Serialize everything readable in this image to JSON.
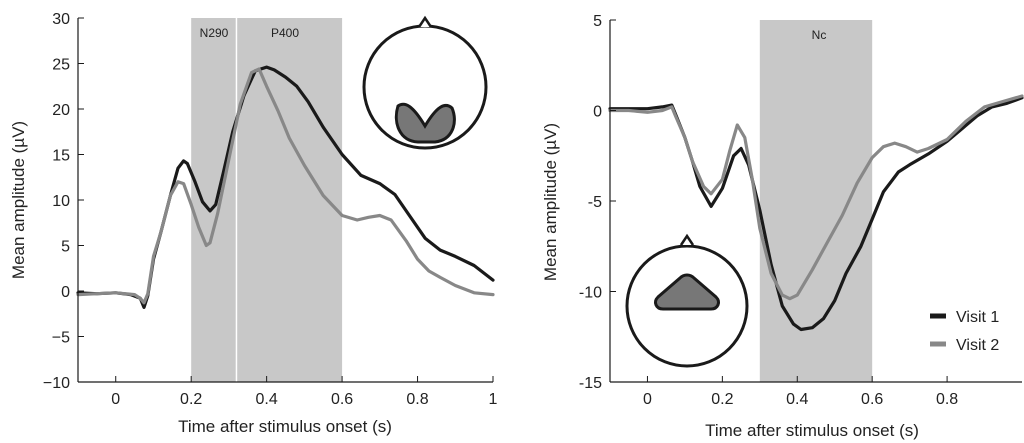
{
  "chart_data": [
    {
      "type": "line",
      "xlabel": "Time after stimulus onset (s)",
      "ylabel": "Mean amplitude (µV)",
      "xlim": [
        -0.1,
        1.0
      ],
      "ylim": [
        -10,
        30
      ],
      "xticks": [
        "0",
        "0.2",
        "0.4",
        "0.6",
        "0.8",
        "1"
      ],
      "yticks": [
        "30",
        "25",
        "20",
        "15",
        "10",
        "5",
        "0",
        "−5",
        "−10"
      ],
      "shaded_regions": [
        {
          "label": "N290",
          "x_start": 0.2,
          "x_end": 0.32
        },
        {
          "label": "P400",
          "x_start": 0.32,
          "x_end": 0.6
        }
      ],
      "series": [
        {
          "name": "Visit 1",
          "color": "#1a1a1a",
          "points": [
            [
              -0.1,
              -0.2
            ],
            [
              -0.05,
              -0.3
            ],
            [
              0.0,
              -0.2
            ],
            [
              0.04,
              -0.4
            ],
            [
              0.065,
              -0.8
            ],
            [
              0.075,
              -1.8
            ],
            [
              0.085,
              -0.5
            ],
            [
              0.1,
              3.5
            ],
            [
              0.12,
              6.5
            ],
            [
              0.145,
              10.5
            ],
            [
              0.165,
              13.5
            ],
            [
              0.18,
              14.3
            ],
            [
              0.19,
              14.0
            ],
            [
              0.21,
              12.0
            ],
            [
              0.23,
              9.8
            ],
            [
              0.25,
              8.8
            ],
            [
              0.265,
              9.5
            ],
            [
              0.285,
              13.0
            ],
            [
              0.31,
              17.5
            ],
            [
              0.34,
              21.5
            ],
            [
              0.37,
              24.2
            ],
            [
              0.4,
              24.6
            ],
            [
              0.42,
              24.3
            ],
            [
              0.45,
              23.5
            ],
            [
              0.48,
              22.5
            ],
            [
              0.51,
              20.8
            ],
            [
              0.55,
              18.0
            ],
            [
              0.6,
              15.0
            ],
            [
              0.65,
              12.7
            ],
            [
              0.7,
              11.8
            ],
            [
              0.74,
              10.6
            ],
            [
              0.78,
              8.2
            ],
            [
              0.82,
              5.8
            ],
            [
              0.86,
              4.5
            ],
            [
              0.9,
              3.8
            ],
            [
              0.95,
              2.8
            ],
            [
              1.0,
              1.2
            ]
          ]
        },
        {
          "name": "Visit 2",
          "color": "#888888",
          "points": [
            [
              -0.1,
              -0.4
            ],
            [
              -0.05,
              -0.3
            ],
            [
              0.0,
              -0.2
            ],
            [
              0.05,
              -0.4
            ],
            [
              0.065,
              -0.8
            ],
            [
              0.075,
              -1.3
            ],
            [
              0.085,
              -0.3
            ],
            [
              0.1,
              3.8
            ],
            [
              0.12,
              6.5
            ],
            [
              0.145,
              10.5
            ],
            [
              0.165,
              12.0
            ],
            [
              0.18,
              11.8
            ],
            [
              0.2,
              9.5
            ],
            [
              0.22,
              7.0
            ],
            [
              0.24,
              5.0
            ],
            [
              0.25,
              5.3
            ],
            [
              0.27,
              8.5
            ],
            [
              0.3,
              14.5
            ],
            [
              0.33,
              20.5
            ],
            [
              0.36,
              24.0
            ],
            [
              0.38,
              24.4
            ],
            [
              0.4,
              22.5
            ],
            [
              0.43,
              19.8
            ],
            [
              0.46,
              16.8
            ],
            [
              0.5,
              13.8
            ],
            [
              0.55,
              10.5
            ],
            [
              0.6,
              8.3
            ],
            [
              0.64,
              7.8
            ],
            [
              0.67,
              8.1
            ],
            [
              0.7,
              8.3
            ],
            [
              0.73,
              7.8
            ],
            [
              0.77,
              5.5
            ],
            [
              0.8,
              3.5
            ],
            [
              0.83,
              2.2
            ],
            [
              0.86,
              1.5
            ],
            [
              0.9,
              0.6
            ],
            [
              0.95,
              -0.2
            ],
            [
              1.0,
              -0.4
            ]
          ]
        }
      ],
      "grid": false
    },
    {
      "type": "line",
      "xlabel": "Time after stimulus onset (s)",
      "ylabel": "Mean amplitude (µV)",
      "xlim": [
        -0.1,
        1.0
      ],
      "ylim": [
        -15,
        5
      ],
      "xticks": [
        "0",
        "0.2",
        "0.4",
        "0.6",
        "0.8"
      ],
      "yticks": [
        "5",
        "0",
        "-5",
        "-10",
        "-15"
      ],
      "shaded_regions": [
        {
          "label": "Nc",
          "x_start": 0.3,
          "x_end": 0.6
        }
      ],
      "legend_position": "bottom-right",
      "series": [
        {
          "name": "Visit 1",
          "color": "#1a1a1a",
          "points": [
            [
              -0.1,
              0.1
            ],
            [
              -0.05,
              0.1
            ],
            [
              0.0,
              0.1
            ],
            [
              0.04,
              0.2
            ],
            [
              0.065,
              0.3
            ],
            [
              0.075,
              -0.2
            ],
            [
              0.1,
              -1.5
            ],
            [
              0.12,
              -2.8
            ],
            [
              0.14,
              -4.2
            ],
            [
              0.17,
              -5.3
            ],
            [
              0.2,
              -4.3
            ],
            [
              0.23,
              -2.5
            ],
            [
              0.25,
              -2.1
            ],
            [
              0.27,
              -3.0
            ],
            [
              0.3,
              -5.5
            ],
            [
              0.33,
              -8.5
            ],
            [
              0.36,
              -10.8
            ],
            [
              0.39,
              -11.8
            ],
            [
              0.41,
              -12.1
            ],
            [
              0.44,
              -12.0
            ],
            [
              0.47,
              -11.5
            ],
            [
              0.5,
              -10.5
            ],
            [
              0.53,
              -9.0
            ],
            [
              0.57,
              -7.5
            ],
            [
              0.6,
              -6.0
            ],
            [
              0.63,
              -4.5
            ],
            [
              0.67,
              -3.4
            ],
            [
              0.7,
              -3.0
            ],
            [
              0.75,
              -2.4
            ],
            [
              0.8,
              -1.7
            ],
            [
              0.84,
              -1.0
            ],
            [
              0.88,
              -0.3
            ],
            [
              0.92,
              0.2
            ],
            [
              0.96,
              0.4
            ],
            [
              1.0,
              0.7
            ]
          ]
        },
        {
          "name": "Visit 2",
          "color": "#888888",
          "points": [
            [
              -0.1,
              0.0
            ],
            [
              -0.05,
              0.0
            ],
            [
              0.0,
              -0.1
            ],
            [
              0.04,
              0.0
            ],
            [
              0.065,
              0.2
            ],
            [
              0.075,
              -0.3
            ],
            [
              0.1,
              -1.5
            ],
            [
              0.12,
              -2.8
            ],
            [
              0.15,
              -4.2
            ],
            [
              0.17,
              -4.6
            ],
            [
              0.2,
              -3.8
            ],
            [
              0.22,
              -2.2
            ],
            [
              0.24,
              -0.8
            ],
            [
              0.26,
              -1.5
            ],
            [
              0.28,
              -3.8
            ],
            [
              0.3,
              -6.5
            ],
            [
              0.33,
              -9.0
            ],
            [
              0.36,
              -10.2
            ],
            [
              0.38,
              -10.4
            ],
            [
              0.4,
              -10.2
            ],
            [
              0.44,
              -8.8
            ],
            [
              0.48,
              -7.3
            ],
            [
              0.52,
              -5.8
            ],
            [
              0.56,
              -4.0
            ],
            [
              0.6,
              -2.6
            ],
            [
              0.63,
              -2.0
            ],
            [
              0.66,
              -1.8
            ],
            [
              0.69,
              -2.0
            ],
            [
              0.72,
              -2.3
            ],
            [
              0.75,
              -2.1
            ],
            [
              0.8,
              -1.6
            ],
            [
              0.85,
              -0.6
            ],
            [
              0.9,
              0.2
            ],
            [
              0.95,
              0.5
            ],
            [
              1.0,
              0.8
            ]
          ]
        }
      ],
      "grid": false
    }
  ]
}
